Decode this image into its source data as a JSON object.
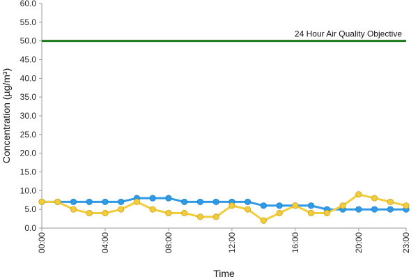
{
  "chart_data": {
    "type": "line",
    "xlabel": "Time",
    "ylabel": "Concentration (µg/m³)",
    "ylim": [
      0,
      60
    ],
    "y_ticks": [
      "0.0",
      "5.0",
      "10.0",
      "15.0",
      "20.0",
      "25.0",
      "30.0",
      "35.0",
      "40.0",
      "45.0",
      "50.0",
      "55.0",
      "60.0"
    ],
    "x": [
      "00:00",
      "01:00",
      "02:00",
      "03:00",
      "04:00",
      "05:00",
      "06:00",
      "07:00",
      "08:00",
      "09:00",
      "10:00",
      "11:00",
      "12:00",
      "13:00",
      "14:00",
      "15:00",
      "16:00",
      "17:00",
      "18:00",
      "19:00",
      "20:00",
      "21:00",
      "22:00",
      "23:00"
    ],
    "x_tick_labels": [
      "00:00",
      "04:00",
      "08:00",
      "12:00",
      "16:00",
      "20:00",
      "23:00"
    ],
    "grid": false,
    "legend": "none",
    "series": [
      {
        "color": "#2f9be8",
        "values": [
          7,
          7,
          7,
          7,
          7,
          7,
          8,
          8,
          8,
          7,
          7,
          7,
          7,
          7,
          6,
          6,
          6,
          6,
          5,
          5,
          5,
          5,
          5,
          5
        ]
      },
      {
        "color": "#f2cc3a",
        "values": [
          7,
          7,
          5,
          4,
          4,
          5,
          7,
          5,
          4,
          4,
          3,
          3,
          6,
          5,
          2,
          4,
          6,
          4,
          4,
          6,
          9,
          8,
          7,
          6
        ]
      }
    ],
    "reference_line": {
      "value": 50,
      "label": "24 Hour Air Quality Objective",
      "color": "#1e7a1e"
    }
  }
}
